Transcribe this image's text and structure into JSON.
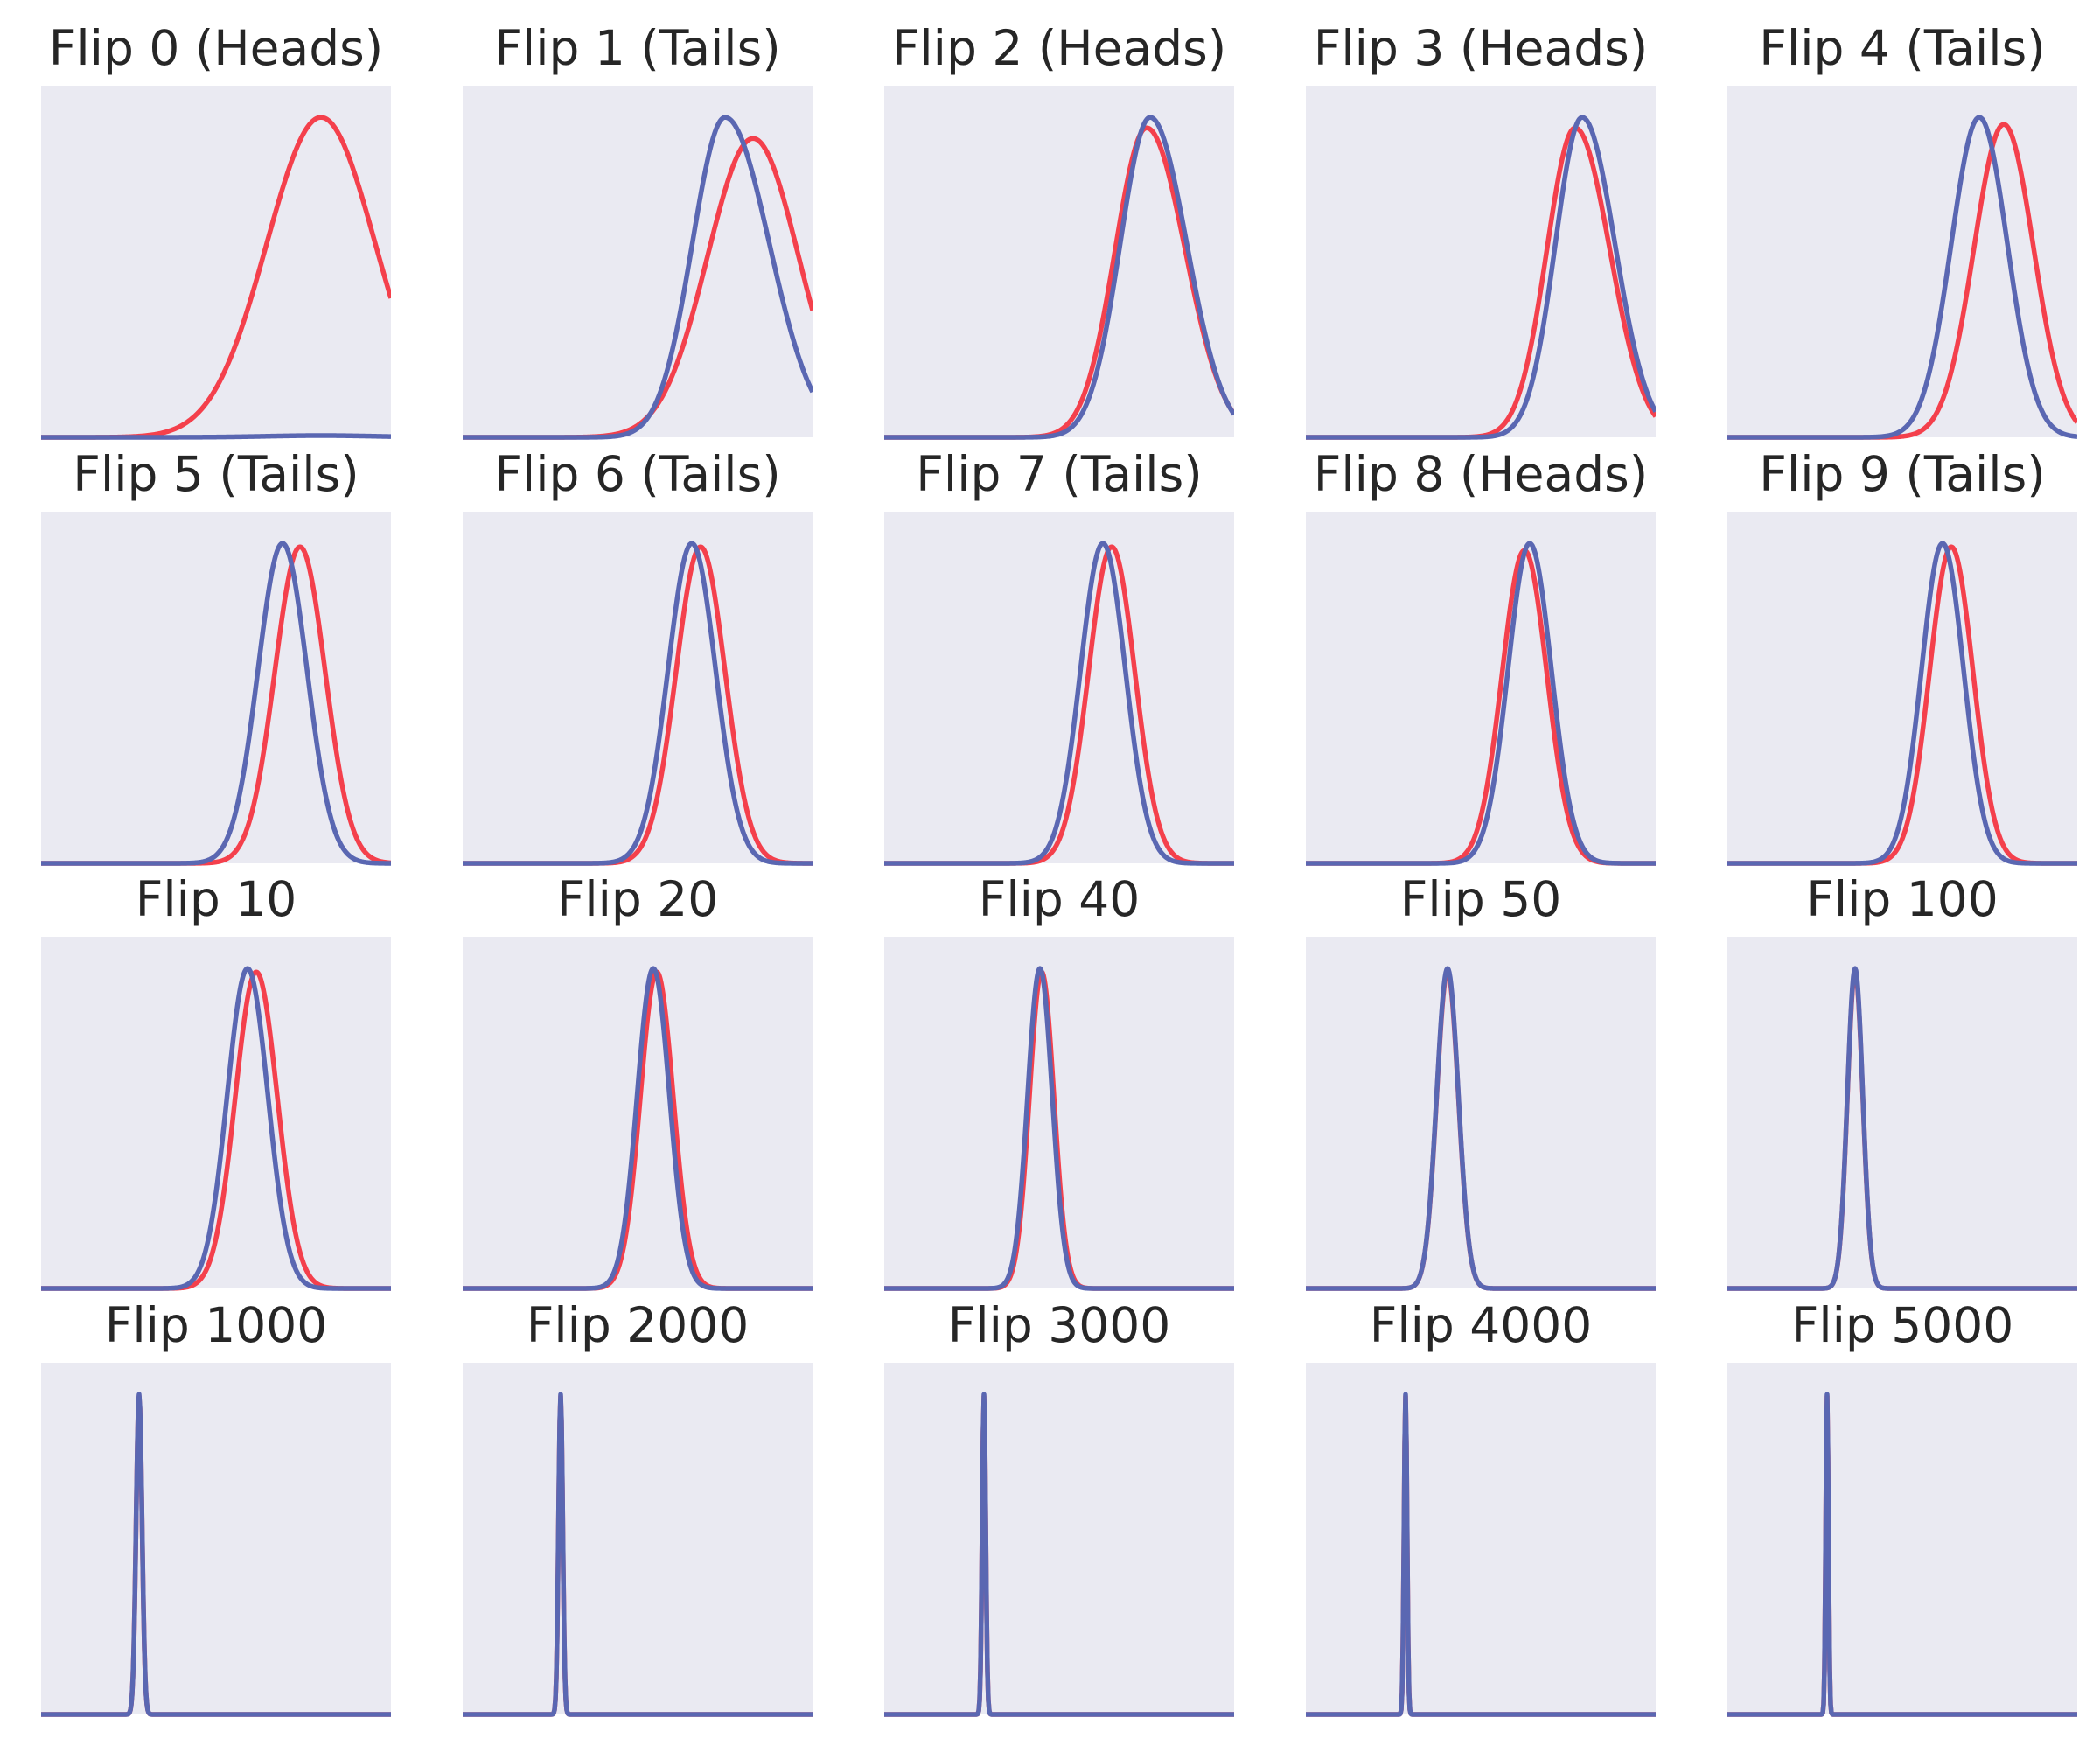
{
  "colors": {
    "background": "#ffffff",
    "plot_background": "#eaeaf2",
    "prior_line": "#f4404c",
    "posterior_line": "#5a67b2",
    "title_text": "#262626"
  },
  "chart_data": [
    {
      "type": "line",
      "title": "Flip 0 (Heads)",
      "grid": false,
      "axes_visible": false,
      "series": [
        {
          "color": "#f4404c",
          "shape": {
            "peak_x": 0.8,
            "sigma": 0.155,
            "peak_height": 0.91,
            "skew": 0.0
          }
        },
        {
          "color": "#5a67b2",
          "shape": {
            "peak_x": 0.8,
            "sigma": 0.155,
            "peak_height": 0.005,
            "skew": 0.0
          }
        }
      ]
    },
    {
      "type": "line",
      "title": "Flip 1 (Tails)",
      "grid": false,
      "axes_visible": false,
      "series": [
        {
          "color": "#f4404c",
          "shape": {
            "peak_x": 0.83,
            "sigma": 0.13,
            "peak_height": 0.85,
            "skew": 0.0
          }
        },
        {
          "color": "#5a67b2",
          "shape": {
            "peak_x": 0.75,
            "sigma": 0.11,
            "peak_height": 0.91,
            "skew": -0.15
          }
        }
      ]
    },
    {
      "type": "line",
      "title": "Flip 2 (Heads)",
      "grid": false,
      "axes_visible": false,
      "series": [
        {
          "color": "#f4404c",
          "shape": {
            "peak_x": 0.75,
            "sigma": 0.1,
            "peak_height": 0.88,
            "skew": -0.1
          }
        },
        {
          "color": "#5a67b2",
          "shape": {
            "peak_x": 0.76,
            "sigma": 0.095,
            "peak_height": 0.91,
            "skew": -0.1
          }
        }
      ]
    },
    {
      "type": "line",
      "title": "Flip 3 (Heads)",
      "grid": false,
      "axes_visible": false,
      "series": [
        {
          "color": "#f4404c",
          "shape": {
            "peak_x": 0.77,
            "sigma": 0.09,
            "peak_height": 0.88,
            "skew": -0.1
          }
        },
        {
          "color": "#5a67b2",
          "shape": {
            "peak_x": 0.79,
            "sigma": 0.085,
            "peak_height": 0.91,
            "skew": -0.1
          }
        }
      ]
    },
    {
      "type": "line",
      "title": "Flip 4 (Tails)",
      "grid": false,
      "axes_visible": false,
      "series": [
        {
          "color": "#f4404c",
          "shape": {
            "peak_x": 0.79,
            "sigma": 0.085,
            "peak_height": 0.89,
            "skew": 0.0
          }
        },
        {
          "color": "#5a67b2",
          "shape": {
            "peak_x": 0.72,
            "sigma": 0.08,
            "peak_height": 0.91,
            "skew": 0.0
          }
        }
      ]
    },
    {
      "type": "line",
      "title": "Flip 5 (Tails)",
      "grid": false,
      "axes_visible": false,
      "series": [
        {
          "color": "#f4404c",
          "shape": {
            "peak_x": 0.74,
            "sigma": 0.072,
            "peak_height": 0.9,
            "skew": 0.0
          }
        },
        {
          "color": "#5a67b2",
          "shape": {
            "peak_x": 0.69,
            "sigma": 0.07,
            "peak_height": 0.91,
            "skew": 0.0
          }
        }
      ]
    },
    {
      "type": "line",
      "title": "Flip 6 (Tails)",
      "grid": false,
      "axes_visible": false,
      "series": [
        {
          "color": "#f4404c",
          "shape": {
            "peak_x": 0.68,
            "sigma": 0.07,
            "peak_height": 0.9,
            "skew": 0.0
          }
        },
        {
          "color": "#5a67b2",
          "shape": {
            "peak_x": 0.655,
            "sigma": 0.068,
            "peak_height": 0.91,
            "skew": 0.0
          }
        }
      ]
    },
    {
      "type": "line",
      "title": "Flip 7 (Tails)",
      "grid": false,
      "axes_visible": false,
      "series": [
        {
          "color": "#f4404c",
          "shape": {
            "peak_x": 0.65,
            "sigma": 0.066,
            "peak_height": 0.9,
            "skew": 0.0
          }
        },
        {
          "color": "#5a67b2",
          "shape": {
            "peak_x": 0.625,
            "sigma": 0.064,
            "peak_height": 0.91,
            "skew": 0.0
          }
        }
      ]
    },
    {
      "type": "line",
      "title": "Flip 8 (Heads)",
      "grid": false,
      "axes_visible": false,
      "series": [
        {
          "color": "#f4404c",
          "shape": {
            "peak_x": 0.625,
            "sigma": 0.064,
            "peak_height": 0.89,
            "skew": 0.0
          }
        },
        {
          "color": "#5a67b2",
          "shape": {
            "peak_x": 0.64,
            "sigma": 0.062,
            "peak_height": 0.91,
            "skew": 0.0
          }
        }
      ]
    },
    {
      "type": "line",
      "title": "Flip 9 (Tails)",
      "grid": false,
      "axes_visible": false,
      "series": [
        {
          "color": "#f4404c",
          "shape": {
            "peak_x": 0.64,
            "sigma": 0.062,
            "peak_height": 0.9,
            "skew": 0.0
          }
        },
        {
          "color": "#5a67b2",
          "shape": {
            "peak_x": 0.615,
            "sigma": 0.06,
            "peak_height": 0.91,
            "skew": 0.0
          }
        }
      ]
    },
    {
      "type": "line",
      "title": "Flip 10",
      "grid": false,
      "axes_visible": false,
      "series": [
        {
          "color": "#f4404c",
          "shape": {
            "peak_x": 0.615,
            "sigma": 0.06,
            "peak_height": 0.9,
            "skew": 0.0
          }
        },
        {
          "color": "#5a67b2",
          "shape": {
            "peak_x": 0.59,
            "sigma": 0.058,
            "peak_height": 0.91,
            "skew": 0.0
          }
        }
      ]
    },
    {
      "type": "line",
      "title": "Flip 20",
      "grid": false,
      "axes_visible": false,
      "series": [
        {
          "color": "#f4404c",
          "shape": {
            "peak_x": 0.555,
            "sigma": 0.047,
            "peak_height": 0.9,
            "skew": 0.0
          }
        },
        {
          "color": "#5a67b2",
          "shape": {
            "peak_x": 0.545,
            "sigma": 0.046,
            "peak_height": 0.91,
            "skew": 0.0
          }
        }
      ]
    },
    {
      "type": "line",
      "title": "Flip 40",
      "grid": false,
      "axes_visible": false,
      "series": [
        {
          "color": "#f4404c",
          "shape": {
            "peak_x": 0.45,
            "sigma": 0.035,
            "peak_height": 0.9,
            "skew": 0.0
          }
        },
        {
          "color": "#5a67b2",
          "shape": {
            "peak_x": 0.445,
            "sigma": 0.035,
            "peak_height": 0.91,
            "skew": 0.0
          }
        }
      ]
    },
    {
      "type": "line",
      "title": "Flip 50",
      "grid": false,
      "axes_visible": false,
      "series": [
        {
          "color": "#f4404c",
          "shape": {
            "peak_x": 0.405,
            "sigma": 0.031,
            "peak_height": 0.9,
            "skew": 0.0
          }
        },
        {
          "color": "#5a67b2",
          "shape": {
            "peak_x": 0.405,
            "sigma": 0.031,
            "peak_height": 0.91,
            "skew": 0.0
          }
        }
      ]
    },
    {
      "type": "line",
      "title": "Flip 100",
      "grid": false,
      "axes_visible": false,
      "series": [
        {
          "color": "#f4404c",
          "shape": {
            "peak_x": 0.365,
            "sigma": 0.022,
            "peak_height": 0.9,
            "skew": 0.0
          }
        },
        {
          "color": "#5a67b2",
          "shape": {
            "peak_x": 0.365,
            "sigma": 0.022,
            "peak_height": 0.91,
            "skew": 0.0
          }
        }
      ]
    },
    {
      "type": "line",
      "title": "Flip 1000",
      "grid": false,
      "axes_visible": false,
      "series": [
        {
          "color": "#f4404c",
          "shape": {
            "peak_x": 0.28,
            "sigma": 0.0085,
            "peak_height": 0.905,
            "skew": 0.0
          }
        },
        {
          "color": "#5a67b2",
          "shape": {
            "peak_x": 0.28,
            "sigma": 0.0085,
            "peak_height": 0.91,
            "skew": 0.0
          }
        }
      ]
    },
    {
      "type": "line",
      "title": "Flip 2000",
      "grid": false,
      "axes_visible": false,
      "series": [
        {
          "color": "#f4404c",
          "shape": {
            "peak_x": 0.28,
            "sigma": 0.006,
            "peak_height": 0.905,
            "skew": 0.0
          }
        },
        {
          "color": "#5a67b2",
          "shape": {
            "peak_x": 0.28,
            "sigma": 0.006,
            "peak_height": 0.91,
            "skew": 0.0
          }
        }
      ]
    },
    {
      "type": "line",
      "title": "Flip 3000",
      "grid": false,
      "axes_visible": false,
      "series": [
        {
          "color": "#f4404c",
          "shape": {
            "peak_x": 0.285,
            "sigma": 0.005,
            "peak_height": 0.905,
            "skew": 0.0
          }
        },
        {
          "color": "#5a67b2",
          "shape": {
            "peak_x": 0.285,
            "sigma": 0.005,
            "peak_height": 0.91,
            "skew": 0.0
          }
        }
      ]
    },
    {
      "type": "line",
      "title": "Flip 4000",
      "grid": false,
      "axes_visible": false,
      "series": [
        {
          "color": "#f4404c",
          "shape": {
            "peak_x": 0.285,
            "sigma": 0.0043,
            "peak_height": 0.905,
            "skew": 0.0
          }
        },
        {
          "color": "#5a67b2",
          "shape": {
            "peak_x": 0.285,
            "sigma": 0.0043,
            "peak_height": 0.91,
            "skew": 0.0
          }
        }
      ]
    },
    {
      "type": "line",
      "title": "Flip 5000",
      "grid": false,
      "axes_visible": false,
      "series": [
        {
          "color": "#f4404c",
          "shape": {
            "peak_x": 0.285,
            "sigma": 0.0038,
            "peak_height": 0.905,
            "skew": 0.0
          }
        },
        {
          "color": "#5a67b2",
          "shape": {
            "peak_x": 0.285,
            "sigma": 0.0038,
            "peak_height": 0.91,
            "skew": 0.0
          }
        }
      ]
    }
  ]
}
